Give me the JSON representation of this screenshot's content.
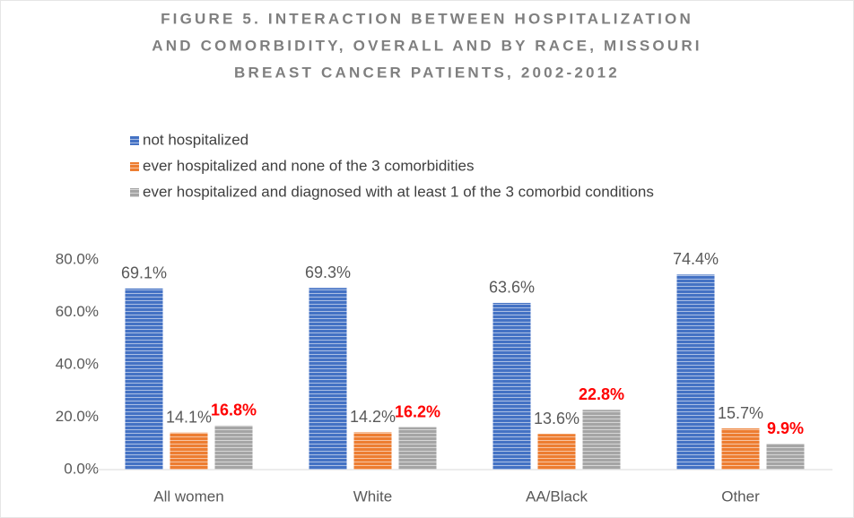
{
  "chart_data": {
    "type": "bar",
    "title": [
      "FIGURE 5. INTERACTION BETWEEN HOSPITALIZATION",
      "AND COMORBIDITY, OVERALL AND BY RACE, MISSOURI",
      "BREAST CANCER PATIENTS, 2002-2012"
    ],
    "categories": [
      "All women",
      "White",
      "AA/Black",
      "Other"
    ],
    "series": [
      {
        "name": "not hospitalized",
        "color": "#4472c4",
        "label_color": "#595959",
        "label_bold": false,
        "values": [
          69.1,
          69.3,
          63.6,
          74.4
        ],
        "value_labels": [
          "69.1%",
          "69.3%",
          "63.6%",
          "74.4%"
        ]
      },
      {
        "name": "ever hospitalized and none of the 3 comorbidities",
        "color": "#ed7d31",
        "label_color": "#595959",
        "label_bold": false,
        "values": [
          14.1,
          14.2,
          13.6,
          15.7
        ],
        "value_labels": [
          "14.1%",
          "14.2%",
          "13.6%",
          "15.7%"
        ]
      },
      {
        "name": "ever hospitalized and diagnosed with at least 1 of the 3 comorbid conditions",
        "color": "#a5a5a5",
        "label_color": "#ff0000",
        "label_bold": true,
        "values": [
          16.8,
          16.2,
          22.8,
          9.9
        ],
        "value_labels": [
          "16.8%",
          "16.2%",
          "22.8%",
          "9.9%"
        ]
      }
    ],
    "ylim": [
      0,
      80
    ],
    "yticks": [
      {
        "value": 0,
        "label": "0.0%"
      },
      {
        "value": 20,
        "label": "20.0%"
      },
      {
        "value": 40,
        "label": "40.0%"
      },
      {
        "value": 60,
        "label": "60.0%"
      },
      {
        "value": 80,
        "label": "80.0%"
      }
    ],
    "grid": false,
    "legend": "top"
  }
}
